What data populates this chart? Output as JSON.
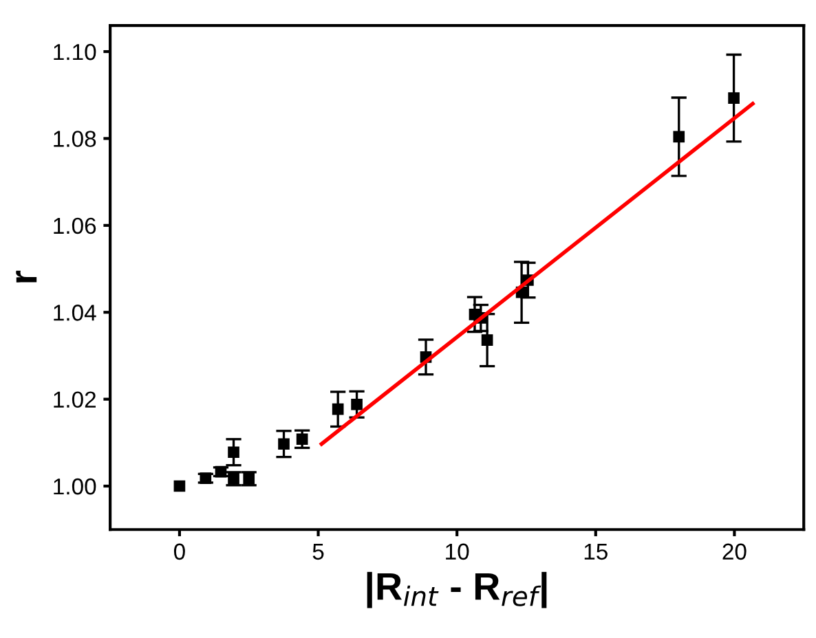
{
  "chart_data": {
    "type": "scatter",
    "xlabel": "|R$_{int}$ - R$_{ref}$|",
    "ylabel": "r",
    "xlim": [
      -2.5,
      22.5
    ],
    "ylim": [
      0.99,
      1.106
    ],
    "xticks": [
      0,
      5,
      10,
      15,
      20
    ],
    "yticks": [
      {
        "value": 1.0,
        "label": "1.00"
      },
      {
        "value": 1.02,
        "label": "1.02"
      },
      {
        "value": 1.04,
        "label": "1.04"
      },
      {
        "value": 1.06,
        "label": "1.06"
      },
      {
        "value": 1.08,
        "label": "1.08"
      },
      {
        "value": 1.1,
        "label": "1.10"
      }
    ],
    "grid": false,
    "series": [
      {
        "color": "#000000",
        "marker": "square",
        "x": [
          0,
          0.94,
          1.49,
          1.95,
          1.95,
          2.5,
          3.76,
          4.42,
          5.71,
          6.39,
          8.88,
          10.64,
          10.86,
          11.09,
          12.33,
          12.56,
          18.0,
          19.98
        ],
        "values": [
          1.0,
          1.0018,
          1.0033,
          1.0078,
          1.0017,
          1.0017,
          1.0097,
          1.0108,
          1.0177,
          1.0188,
          1.0297,
          1.0395,
          1.0387,
          1.0336,
          1.0446,
          1.0474,
          1.0804,
          1.0893
        ],
        "errors": [
          null,
          0.001,
          0.001,
          0.003,
          0.0015,
          0.0015,
          0.003,
          0.002,
          0.004,
          0.003,
          0.004,
          0.004,
          0.003,
          0.006,
          0.007,
          0.004,
          0.009,
          0.01
        ]
      },
      {
        "type": "line",
        "color": "#ff0000",
        "line_style": "solid",
        "marker": "none",
        "x": [
          5.12,
          20.66
        ],
        "values": [
          1.0097,
          1.088
        ]
      }
    ]
  }
}
